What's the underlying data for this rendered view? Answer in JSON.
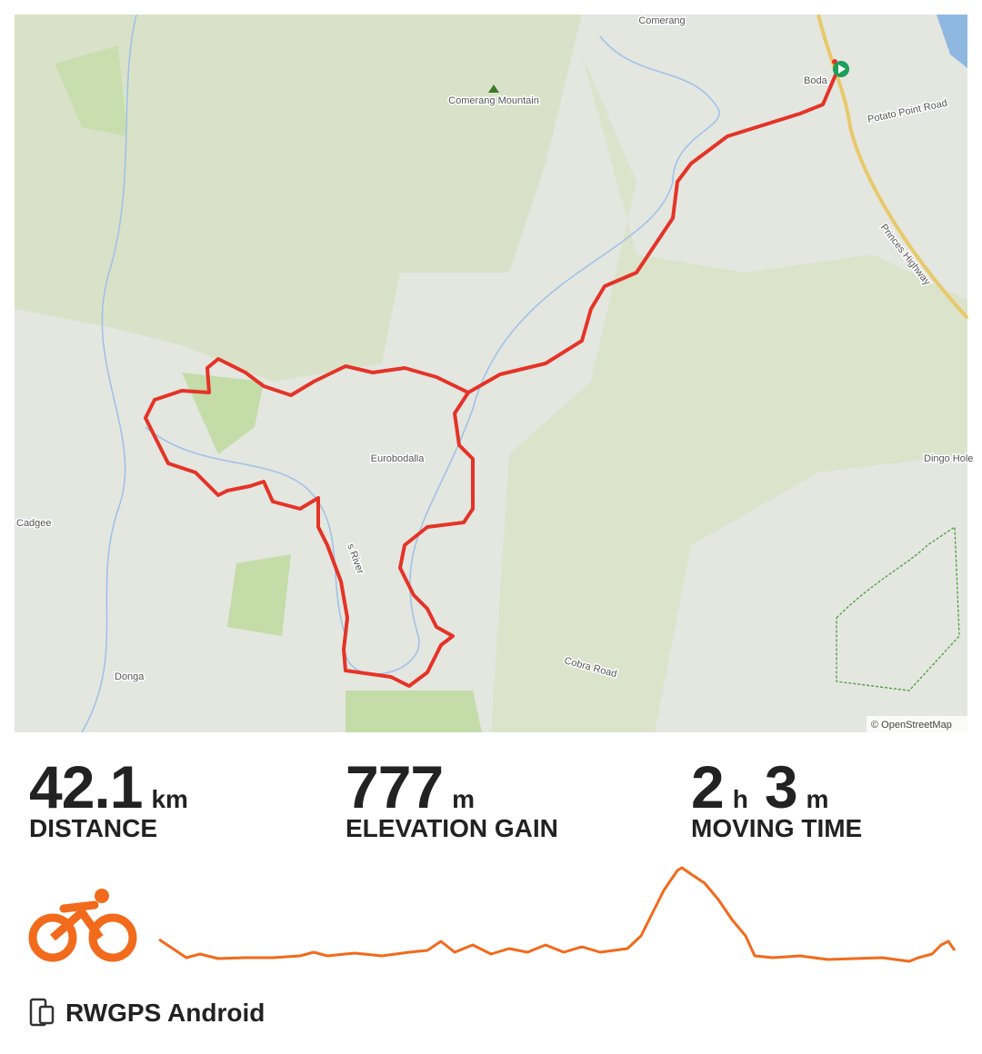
{
  "map": {
    "labels": [
      "Comerang",
      "Comerang Mountain",
      "Boda",
      "Potato Point Road",
      "Princes Highway",
      "Eurobodalla",
      "Dingo Hole",
      "Cadgee",
      "Donga",
      "Cobra Road",
      "s River"
    ],
    "attribution": "© OpenStreetMap"
  },
  "stats": [
    {
      "value": 42.1,
      "unit": "km",
      "label": "DISTANCE"
    },
    {
      "value": 777,
      "unit": "m",
      "label": "ELEVATION GAIN"
    },
    {
      "hours": 2,
      "hours_unit": "h",
      "minutes": 3,
      "minutes_unit": "m",
      "label": "MOVING TIME"
    }
  ],
  "device": "RWGPS Android"
}
